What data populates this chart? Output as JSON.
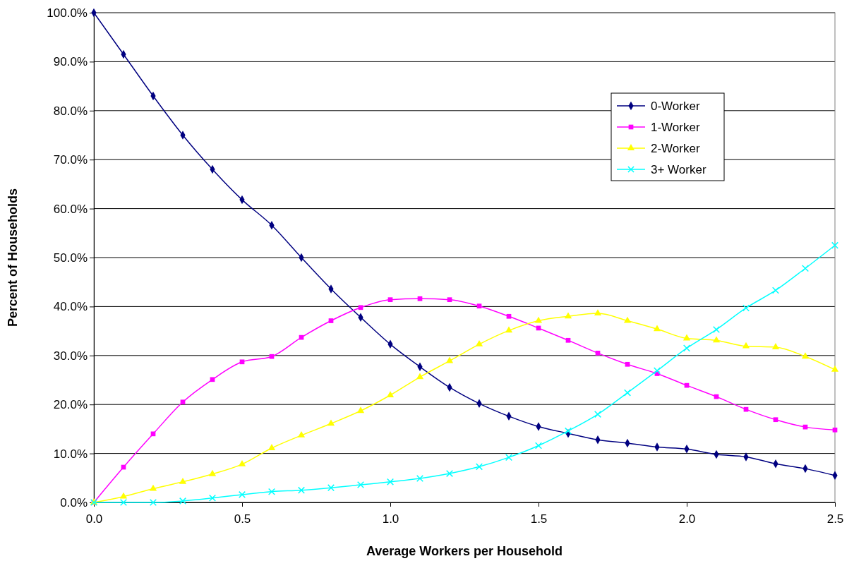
{
  "chart_data": {
    "type": "line",
    "xlabel": "Average Workers per Household",
    "ylabel": "Percent of Households",
    "x": [
      0,
      0.1,
      0.2,
      0.3,
      0.4,
      0.5,
      0.6,
      0.7,
      0.8,
      0.9,
      1.0,
      1.1,
      1.2,
      1.3,
      1.4,
      1.5,
      1.6,
      1.7,
      1.8,
      1.9,
      2.0,
      2.1,
      2.2,
      2.3,
      2.4,
      2.5
    ],
    "series": [
      {
        "name": "0-Worker",
        "color": "#000080",
        "marker": "diamond",
        "values": [
          100,
          91.5,
          83,
          75,
          68,
          61.8,
          56.6,
          50,
          43.6,
          37.8,
          32.3,
          27.7,
          23.5,
          20.2,
          17.6,
          15.5,
          14.1,
          12.8,
          12.1,
          11.3,
          10.9,
          9.8,
          9.3,
          7.9,
          6.9,
          5.5
        ]
      },
      {
        "name": "1-Worker",
        "color": "#ff00ff",
        "marker": "square",
        "values": [
          0,
          7.2,
          14,
          20.5,
          25.1,
          28.7,
          29.8,
          33.7,
          37.1,
          39.8,
          41.4,
          41.6,
          41.4,
          40.1,
          38,
          35.6,
          33.1,
          30.5,
          28.2,
          26.3,
          23.9,
          21.6,
          19,
          16.9,
          15.4,
          14.8
        ]
      },
      {
        "name": "2-Worker",
        "color": "#ffff00",
        "marker": "triangle",
        "values": [
          0,
          1.2,
          2.8,
          4.2,
          5.8,
          7.8,
          11.1,
          13.7,
          16.1,
          18.7,
          21.9,
          25.6,
          28.9,
          32.3,
          35.1,
          37.1,
          38,
          38.6,
          37.1,
          35.4,
          33.5,
          33.1,
          31.9,
          31.7,
          29.8,
          27.1
        ]
      },
      {
        "name": "3+ Worker",
        "color": "#00ffff",
        "marker": "cross",
        "values": [
          0,
          0,
          0,
          0.3,
          0.9,
          1.6,
          2.2,
          2.5,
          3,
          3.6,
          4.2,
          4.9,
          5.9,
          7.3,
          9.2,
          11.6,
          14.6,
          18,
          22.4,
          26.9,
          31.5,
          35.3,
          39.7,
          43.3,
          47.8,
          52.5
        ]
      }
    ],
    "xlim": [
      0,
      2.5
    ],
    "xticks": [
      {
        "value": 0,
        "label": "0.0"
      },
      {
        "value": 0.5,
        "label": "0.5"
      },
      {
        "value": 1,
        "label": "1.0"
      },
      {
        "value": 1.5,
        "label": "1.5"
      },
      {
        "value": 2,
        "label": "2.0"
      },
      {
        "value": 2.5,
        "label": "2.5"
      }
    ],
    "ylim": [
      0,
      100
    ],
    "yticks": [
      {
        "value": 0,
        "label": "0.0%"
      },
      {
        "value": 10,
        "label": "10.0%"
      },
      {
        "value": 20,
        "label": "20.0%"
      },
      {
        "value": 30,
        "label": "30.0%"
      },
      {
        "value": 40,
        "label": "40.0%"
      },
      {
        "value": 50,
        "label": "50.0%"
      },
      {
        "value": 60,
        "label": "60.0%"
      },
      {
        "value": 70,
        "label": "70.0%"
      },
      {
        "value": 80,
        "label": "80.0%"
      },
      {
        "value": 90,
        "label": "90.0%"
      },
      {
        "value": 100,
        "label": "100.0%"
      }
    ],
    "grid": "y",
    "legend": "top right",
    "line_style": "solid"
  }
}
